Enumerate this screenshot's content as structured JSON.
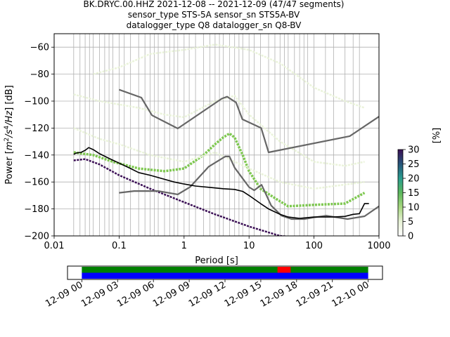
{
  "chart_data": [
    {
      "type": "heatmap",
      "title_lines": [
        "BK.DRYC.00.HHZ   2021-12-08 -- 2021-12-09  (47/47 segments)",
        "sensor_type STS-5A sensor_sn STS5A-BV",
        "datalogger_type Q8 datalogger_sn Q8-BV"
      ],
      "xlabel": "Period [s]",
      "ylabel_parts": [
        "Power [",
        "m",
        "2",
        "/s",
        "4",
        "/Hz",
        "] [dB]"
      ],
      "x_scale": "log",
      "xlim": [
        0.01,
        1000
      ],
      "ylim": [
        -200,
        -50
      ],
      "x_ticks": [
        {
          "value": 0.01,
          "label": "0.01"
        },
        {
          "value": 0.1,
          "label": "0.1"
        },
        {
          "value": 1,
          "label": "1"
        },
        {
          "value": 10,
          "label": "10"
        },
        {
          "value": 100,
          "label": "100"
        },
        {
          "value": 1000,
          "label": "1000"
        }
      ],
      "y_ticks": [
        {
          "value": -60,
          "label": "−60"
        },
        {
          "value": -80,
          "label": "−80"
        },
        {
          "value": -100,
          "label": "−100"
        },
        {
          "value": -120,
          "label": "−120"
        },
        {
          "value": -140,
          "label": "−140"
        },
        {
          "value": -160,
          "label": "−160"
        },
        {
          "value": -180,
          "label": "−180"
        },
        {
          "value": -200,
          "label": "−200"
        }
      ],
      "grid": true,
      "grid_x_periods": [
        0.02,
        0.025,
        0.03,
        0.035,
        0.04,
        0.05,
        0.06,
        0.07,
        0.08,
        0.1,
        0.12,
        0.15,
        0.2,
        0.25,
        0.3,
        0.35,
        0.4,
        0.5,
        0.6,
        0.7,
        0.8,
        1,
        1.2,
        1.5,
        2,
        2.5,
        3,
        3.5,
        4,
        5,
        6,
        7,
        8,
        10,
        12,
        15,
        20,
        25,
        30,
        35,
        40,
        50,
        60,
        70,
        80,
        100,
        150,
        200,
        300,
        400,
        500,
        1000
      ],
      "grid_y_values": [
        -60,
        -80,
        -100,
        -120,
        -140,
        -160,
        -180,
        -200
      ],
      "colors": {
        "nhnm_nlnm": "#666666",
        "mode": "#000000",
        "grid": "#b0b0b0",
        "density_low": "#e8f2d6",
        "density_mid": "#7ec850",
        "density_high": "#2a7d8c",
        "density_max": "#3b0f55"
      },
      "series": [
        {
          "name": "",
          "style": "noise_model_gray",
          "points": [
            [
              0.1,
              -91.5
            ],
            [
              0.22,
              -97.4
            ],
            [
              0.32,
              -110.5
            ],
            [
              0.8,
              -120.3
            ],
            [
              3.8,
              -98.2
            ],
            [
              4.6,
              -96.7
            ],
            [
              6.3,
              -101.0
            ],
            [
              7.9,
              -113.5
            ],
            [
              15.4,
              -120.0
            ],
            [
              20.0,
              -138.0
            ],
            [
              354.8,
              -126.0
            ],
            [
              1000,
              -111.5
            ]
          ]
        },
        {
          "name": "",
          "style": "noise_model_gray",
          "points": [
            [
              0.1,
              -168.0
            ],
            [
              0.17,
              -166.7
            ],
            [
              0.4,
              -166.7
            ],
            [
              0.8,
              -169.2
            ],
            [
              1.24,
              -163.7
            ],
            [
              2.4,
              -148.6
            ],
            [
              4.3,
              -141.1
            ],
            [
              5.0,
              -141.1
            ],
            [
              6.0,
              -149.4
            ],
            [
              10.0,
              -163.8
            ],
            [
              12.0,
              -166.2
            ],
            [
              15.6,
              -162.1
            ],
            [
              21.9,
              -177.5
            ],
            [
              31.6,
              -185.0
            ],
            [
              45.0,
              -187.5
            ],
            [
              70.8,
              -187.5
            ],
            [
              100,
              -186.3
            ],
            [
              154.0,
              -185.0
            ],
            [
              328.4,
              -187.5
            ],
            [
              600.0,
              -185.4
            ],
            [
              1000,
              -178.0
            ]
          ]
        },
        {
          "name": "",
          "style": "mode_black",
          "points": [
            [
              0.02,
              -139.5
            ],
            [
              0.022,
              -138.5
            ],
            [
              0.026,
              -138.0
            ],
            [
              0.03,
              -136.5
            ],
            [
              0.034,
              -134.5
            ],
            [
              0.04,
              -136.0
            ],
            [
              0.05,
              -139.0
            ],
            [
              0.07,
              -142.5
            ],
            [
              0.1,
              -146.0
            ],
            [
              0.15,
              -150.0
            ],
            [
              0.2,
              -153.0
            ],
            [
              0.3,
              -155.0
            ],
            [
              0.5,
              -158.0
            ],
            [
              0.7,
              -160.0
            ],
            [
              1.0,
              -161.5
            ],
            [
              1.5,
              -163.0
            ],
            [
              2.5,
              -164.0
            ],
            [
              4.0,
              -165.0
            ],
            [
              6.0,
              -165.5
            ],
            [
              8.0,
              -167.0
            ],
            [
              10.0,
              -170.0
            ],
            [
              15.0,
              -176.0
            ],
            [
              20.0,
              -180.0
            ],
            [
              30.0,
              -184.0
            ],
            [
              40.0,
              -186.0
            ],
            [
              60.0,
              -187.0
            ],
            [
              100.0,
              -186.0
            ],
            [
              200.0,
              -186.0
            ],
            [
              300.0,
              -185.5
            ],
            [
              400.0,
              -184.0
            ],
            [
              500.0,
              -183.5
            ],
            [
              600.0,
              -176.0
            ],
            [
              700.0,
              -176.0
            ]
          ]
        }
      ],
      "density_bands": [
        {
          "level": "max",
          "points": [
            [
              0.02,
              -144.0
            ],
            [
              0.03,
              -143.0
            ],
            [
              0.05,
              -147.0
            ],
            [
              0.1,
              -155.0
            ],
            [
              0.3,
              -165.0
            ],
            [
              1.0,
              -175.0
            ],
            [
              3.0,
              -184.0
            ],
            [
              10.0,
              -193.0
            ],
            [
              30.0,
              -200.0
            ],
            [
              100.0,
              -202.0
            ]
          ]
        },
        {
          "level": "mid",
          "points": [
            [
              0.02,
              -138.0
            ],
            [
              0.04,
              -140.0
            ],
            [
              0.08,
              -145.0
            ],
            [
              0.2,
              -150.0
            ],
            [
              0.5,
              -152.0
            ],
            [
              1.0,
              -150.0
            ],
            [
              2.0,
              -140.0
            ],
            [
              3.0,
              -132.0
            ],
            [
              4.0,
              -127.0
            ],
            [
              5.0,
              -124.0
            ],
            [
              6.0,
              -127.0
            ],
            [
              8.0,
              -140.0
            ],
            [
              10.0,
              -152.0
            ],
            [
              15.0,
              -165.0
            ],
            [
              25.0,
              -172.0
            ],
            [
              40.0,
              -178.0
            ],
            [
              100.0,
              -177.0
            ],
            [
              300.0,
              -176.0
            ],
            [
              600.0,
              -168.0
            ]
          ]
        },
        {
          "level": "low",
          "points": [
            [
              0.04,
              -80.0
            ],
            [
              0.1,
              -75.0
            ],
            [
              0.3,
              -65.0
            ],
            [
              1.0,
              -62.0
            ],
            [
              3.0,
              -58.0
            ],
            [
              10.0,
              -62.0
            ],
            [
              30.0,
              -72.0
            ],
            [
              100.0,
              -90.0
            ],
            [
              300.0,
              -100.0
            ],
            [
              600.0,
              -105.0
            ]
          ]
        },
        {
          "level": "low",
          "points": [
            [
              0.02,
              -95.0
            ],
            [
              0.05,
              -100.0
            ],
            [
              0.2,
              -105.0
            ],
            [
              0.5,
              -110.0
            ],
            [
              1.0,
              -112.0
            ],
            [
              3.0,
              -100.0
            ],
            [
              6.0,
              -96.0
            ],
            [
              10.0,
              -110.0
            ],
            [
              30.0,
              -130.0
            ],
            [
              100.0,
              -145.0
            ],
            [
              300.0,
              -148.0
            ],
            [
              600.0,
              -145.0
            ]
          ]
        },
        {
          "level": "low",
          "points": [
            [
              0.02,
              -120.0
            ],
            [
              0.05,
              -128.0
            ],
            [
              0.1,
              -132.0
            ],
            [
              0.3,
              -140.0
            ],
            [
              1.0,
              -145.0
            ],
            [
              3.0,
              -138.0
            ],
            [
              10.0,
              -150.0
            ],
            [
              30.0,
              -160.0
            ],
            [
              100.0,
              -165.0
            ],
            [
              600.0,
              -160.0
            ]
          ]
        }
      ],
      "colorbar": {
        "label": "[%]",
        "range": [
          0,
          30
        ],
        "ticks": [
          {
            "value": 0,
            "label": "0"
          },
          {
            "value": 5,
            "label": "5"
          },
          {
            "value": 10,
            "label": "10"
          },
          {
            "value": 15,
            "label": "15"
          },
          {
            "value": 20,
            "label": "20"
          },
          {
            "value": 25,
            "label": "25"
          },
          {
            "value": 30,
            "label": "30"
          }
        ],
        "stops": [
          "#ffffff",
          "#e8f2d6",
          "#a8d880",
          "#5cb85c",
          "#2a9d8f",
          "#26557a",
          "#3b0f55"
        ]
      }
    },
    {
      "type": "timeline",
      "time_ticks": [
        {
          "value": 0,
          "label": "12-09 00"
        },
        {
          "value": 3,
          "label": "12-09 03"
        },
        {
          "value": 6,
          "label": "12-09 06"
        },
        {
          "value": 9,
          "label": "12-09 09"
        },
        {
          "value": 12,
          "label": "12-09 12"
        },
        {
          "value": 15,
          "label": "12-09 15"
        },
        {
          "value": 18,
          "label": "12-09 18"
        },
        {
          "value": 21,
          "label": "12-09 21"
        },
        {
          "value": 24,
          "label": "12-10 00"
        }
      ],
      "xlim_hours": [
        -1.2,
        25.2
      ],
      "data_coverage": {
        "start": 0,
        "end": 24,
        "color": "#0000ff"
      },
      "segment_coverage": {
        "start": 0,
        "end": 24,
        "color": "#008000"
      },
      "gaps": [
        {
          "start": 16.4,
          "end": 17.5,
          "color": "#ff0000"
        }
      ]
    }
  ]
}
